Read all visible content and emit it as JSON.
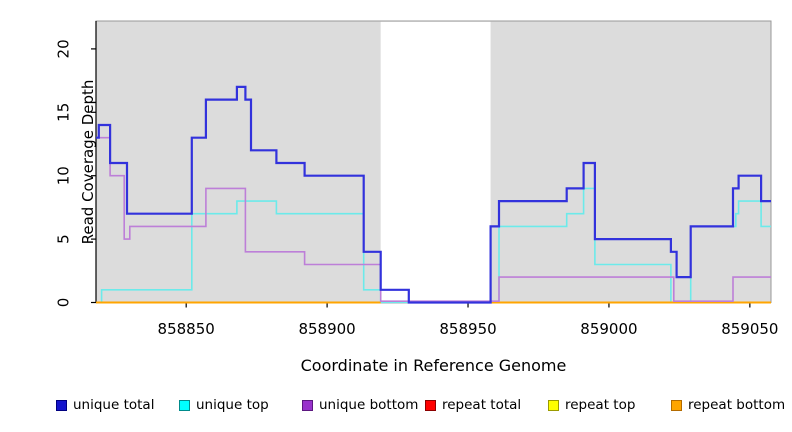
{
  "chart_data": {
    "type": "line",
    "subtype": "step-coverage",
    "title": "",
    "xlabel": "Coordinate in Reference Genome",
    "ylabel": "Read Coverage Depth",
    "xlim": [
      858818,
      859057.5
    ],
    "ylim": [
      0,
      22.2
    ],
    "x_ticks": [
      858850,
      858900,
      858950,
      859000,
      859050
    ],
    "y_ticks": [
      0,
      5,
      10,
      15,
      20
    ],
    "grid": false,
    "plot_bg": "#dcdcdc",
    "plot_border": "#999999",
    "axis_color": "#000000",
    "gap_region": {
      "x0": 858919,
      "x1": 858958,
      "color": "#ffffff"
    },
    "legend_position": "bottom",
    "series": [
      {
        "label": "unique total",
        "color": "#3232dc",
        "legend_fill": "#1414cc",
        "legend_border": "#000080",
        "width": 2.2,
        "zorder": 6,
        "segments": [
          {
            "steps": [
              [
                858818,
                13
              ],
              [
                858819,
                14
              ],
              [
                858823,
                11
              ],
              [
                858829,
                7
              ],
              [
                858852,
                13
              ],
              [
                858857,
                16
              ],
              [
                858868,
                17
              ],
              [
                858871,
                16
              ],
              [
                858873,
                12
              ],
              [
                858882,
                11
              ],
              [
                858892,
                10
              ],
              [
                858913,
                4
              ],
              [
                858919,
                1
              ],
              [
                858929,
                0
              ],
              [
                858958,
                6
              ],
              [
                858961,
                8
              ],
              [
                858985,
                9
              ],
              [
                858991,
                11
              ],
              [
                858995,
                5
              ],
              [
                859022,
                4
              ],
              [
                859024,
                2
              ],
              [
                859029,
                6
              ],
              [
                859044,
                9
              ],
              [
                859046,
                10
              ],
              [
                859054,
                8
              ]
            ],
            "xend": 859057.5
          }
        ]
      },
      {
        "label": "unique top",
        "color": "#6ceaea",
        "legend_fill": "#00ffff",
        "legend_border": "#008b8b",
        "width": 1.6,
        "zorder": 3,
        "segments": [
          {
            "steps": [
              [
                858818,
                0
              ],
              [
                858820,
                1
              ],
              [
                858852,
                7
              ],
              [
                858868,
                8
              ],
              [
                858882,
                7
              ],
              [
                858913,
                1
              ],
              [
                858919,
                0
              ],
              [
                858961,
                6
              ],
              [
                858985,
                7
              ],
              [
                858991,
                9
              ],
              [
                858995,
                3
              ],
              [
                859022,
                0
              ],
              [
                859029,
                6
              ],
              [
                859045,
                7
              ],
              [
                859046,
                8
              ],
              [
                859054,
                6
              ]
            ],
            "xend": 859057.5
          }
        ]
      },
      {
        "label": "unique bottom",
        "color": "#bd7fd8",
        "legend_fill": "#9932cc",
        "legend_border": "#5c1880",
        "width": 1.6,
        "zorder": 5,
        "segments": [
          {
            "steps": [
              [
                858818,
                13
              ],
              [
                858823,
                10
              ],
              [
                858828,
                5
              ],
              [
                858830,
                6
              ],
              [
                858857,
                9
              ],
              [
                858871,
                4
              ],
              [
                858892,
                3
              ],
              [
                858919,
                0
              ],
              [
                858961,
                2
              ],
              [
                859023,
                0
              ],
              [
                859044,
                2
              ]
            ],
            "xend": 859057.5
          }
        ]
      },
      {
        "label": "repeat total",
        "color": "#d63b4f",
        "legend_fill": "#ff0000",
        "legend_border": "#8b0000",
        "width": 1.6,
        "zorder": 1,
        "segments": [
          {
            "steps": [
              [
                858818,
                0
              ]
            ],
            "xend": 859057.5
          }
        ]
      },
      {
        "label": "repeat top",
        "color": "#ffff00",
        "legend_fill": "#ffff00",
        "legend_border": "#9b9b00",
        "width": 1.6,
        "zorder": 2,
        "segments": [
          {
            "steps": [
              [
                858818,
                0
              ]
            ],
            "xend": 858919
          },
          {
            "steps": [
              [
                858958,
                0
              ]
            ],
            "xend": 859057.5
          }
        ]
      },
      {
        "label": "repeat bottom",
        "color": "#ffa500",
        "legend_fill": "#ffa500",
        "legend_border": "#b36b00",
        "width": 2,
        "zorder": 4,
        "segments": [
          {
            "steps": [
              [
                858818,
                0
              ]
            ],
            "xend": 858919
          },
          {
            "steps": [
              [
                858958,
                0
              ]
            ],
            "xend": 859057.5
          }
        ]
      }
    ]
  }
}
